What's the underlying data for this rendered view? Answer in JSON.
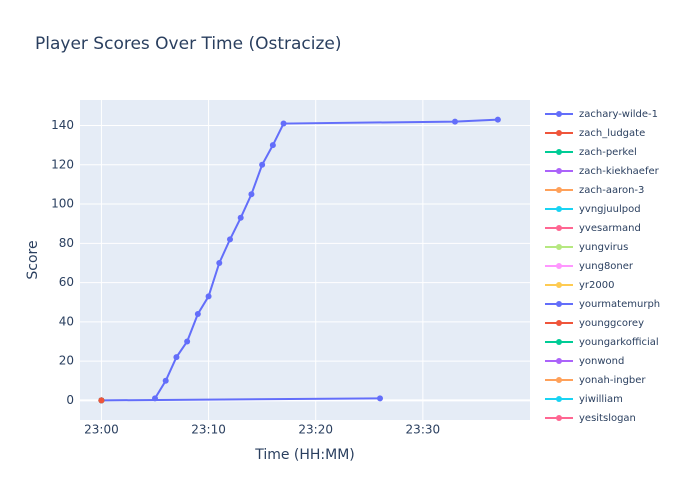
{
  "chart_data": {
    "type": "line",
    "title": "Player Scores Over Time (Ostracize)",
    "x_label": "Time (HH:MM)",
    "y_label": "Score",
    "xlim": [
      "22:58",
      "23:40"
    ],
    "xticks": [
      "23:00",
      "23:10",
      "23:20",
      "23:30"
    ],
    "ylim": [
      -10,
      153
    ],
    "yticks": [
      0,
      20,
      40,
      60,
      80,
      100,
      120,
      140
    ],
    "grid": true,
    "legend": "right",
    "series": [
      {
        "name": "zachary-wilde-1",
        "color": "#636efa",
        "x": [
          "23:05",
          "23:06",
          "23:07",
          "23:08",
          "23:09",
          "23:10",
          "23:11",
          "23:12",
          "23:13",
          "23:14",
          "23:15",
          "23:16",
          "23:17",
          "23:33",
          "23:37"
        ],
        "values": [
          1,
          10,
          22,
          30,
          44,
          53,
          70,
          82,
          93,
          105,
          120,
          130,
          141,
          142,
          143
        ]
      },
      {
        "name": "zach_ludgate",
        "color": "#EF553B",
        "x": [
          "23:00"
        ],
        "values": [
          0
        ]
      },
      {
        "name": "zach-perkel",
        "color": "#00cc96",
        "x": [
          "23:00"
        ],
        "values": [
          0
        ]
      },
      {
        "name": "zach-kiekhaefer",
        "color": "#ab63fa",
        "x": [
          "23:00"
        ],
        "values": [
          0
        ]
      },
      {
        "name": "zach-aaron-3",
        "color": "#FFA15A",
        "x": [
          "23:00"
        ],
        "values": [
          0
        ]
      },
      {
        "name": "yvngjuulpod",
        "color": "#19d3f3",
        "x": [
          "23:00"
        ],
        "values": [
          0
        ]
      },
      {
        "name": "yvesarmand",
        "color": "#FF6692",
        "x": [
          "23:00"
        ],
        "values": [
          0
        ]
      },
      {
        "name": "yungvirus",
        "color": "#B6E880",
        "x": [
          "23:00"
        ],
        "values": [
          0
        ]
      },
      {
        "name": "yung8oner",
        "color": "#FF97FF",
        "x": [
          "23:00"
        ],
        "values": [
          0
        ]
      },
      {
        "name": "yr2000",
        "color": "#FECB52",
        "x": [
          "23:00"
        ],
        "values": [
          0
        ]
      },
      {
        "name": "yourmatemurph",
        "color": "#636efa",
        "x": [
          "23:00",
          "23:26"
        ],
        "values": [
          0,
          1
        ]
      },
      {
        "name": "younggcorey",
        "color": "#EF553B",
        "x": [
          "23:00"
        ],
        "values": [
          0
        ]
      },
      {
        "name": "youngarkofficial",
        "color": "#00cc96",
        "x": [
          "23:00"
        ],
        "values": [
          0
        ]
      },
      {
        "name": "yonwond",
        "color": "#ab63fa",
        "x": [
          "23:00"
        ],
        "values": [
          0
        ]
      },
      {
        "name": "yonah-ingber",
        "color": "#FFA15A",
        "x": [
          "23:00"
        ],
        "values": [
          0
        ]
      },
      {
        "name": "yiwilliam",
        "color": "#19d3f3",
        "x": [
          "23:00"
        ],
        "values": [
          0
        ]
      },
      {
        "name": "yesitslogan",
        "color": "#FF6692",
        "x": [
          "23:00"
        ],
        "values": [
          0
        ]
      }
    ]
  }
}
